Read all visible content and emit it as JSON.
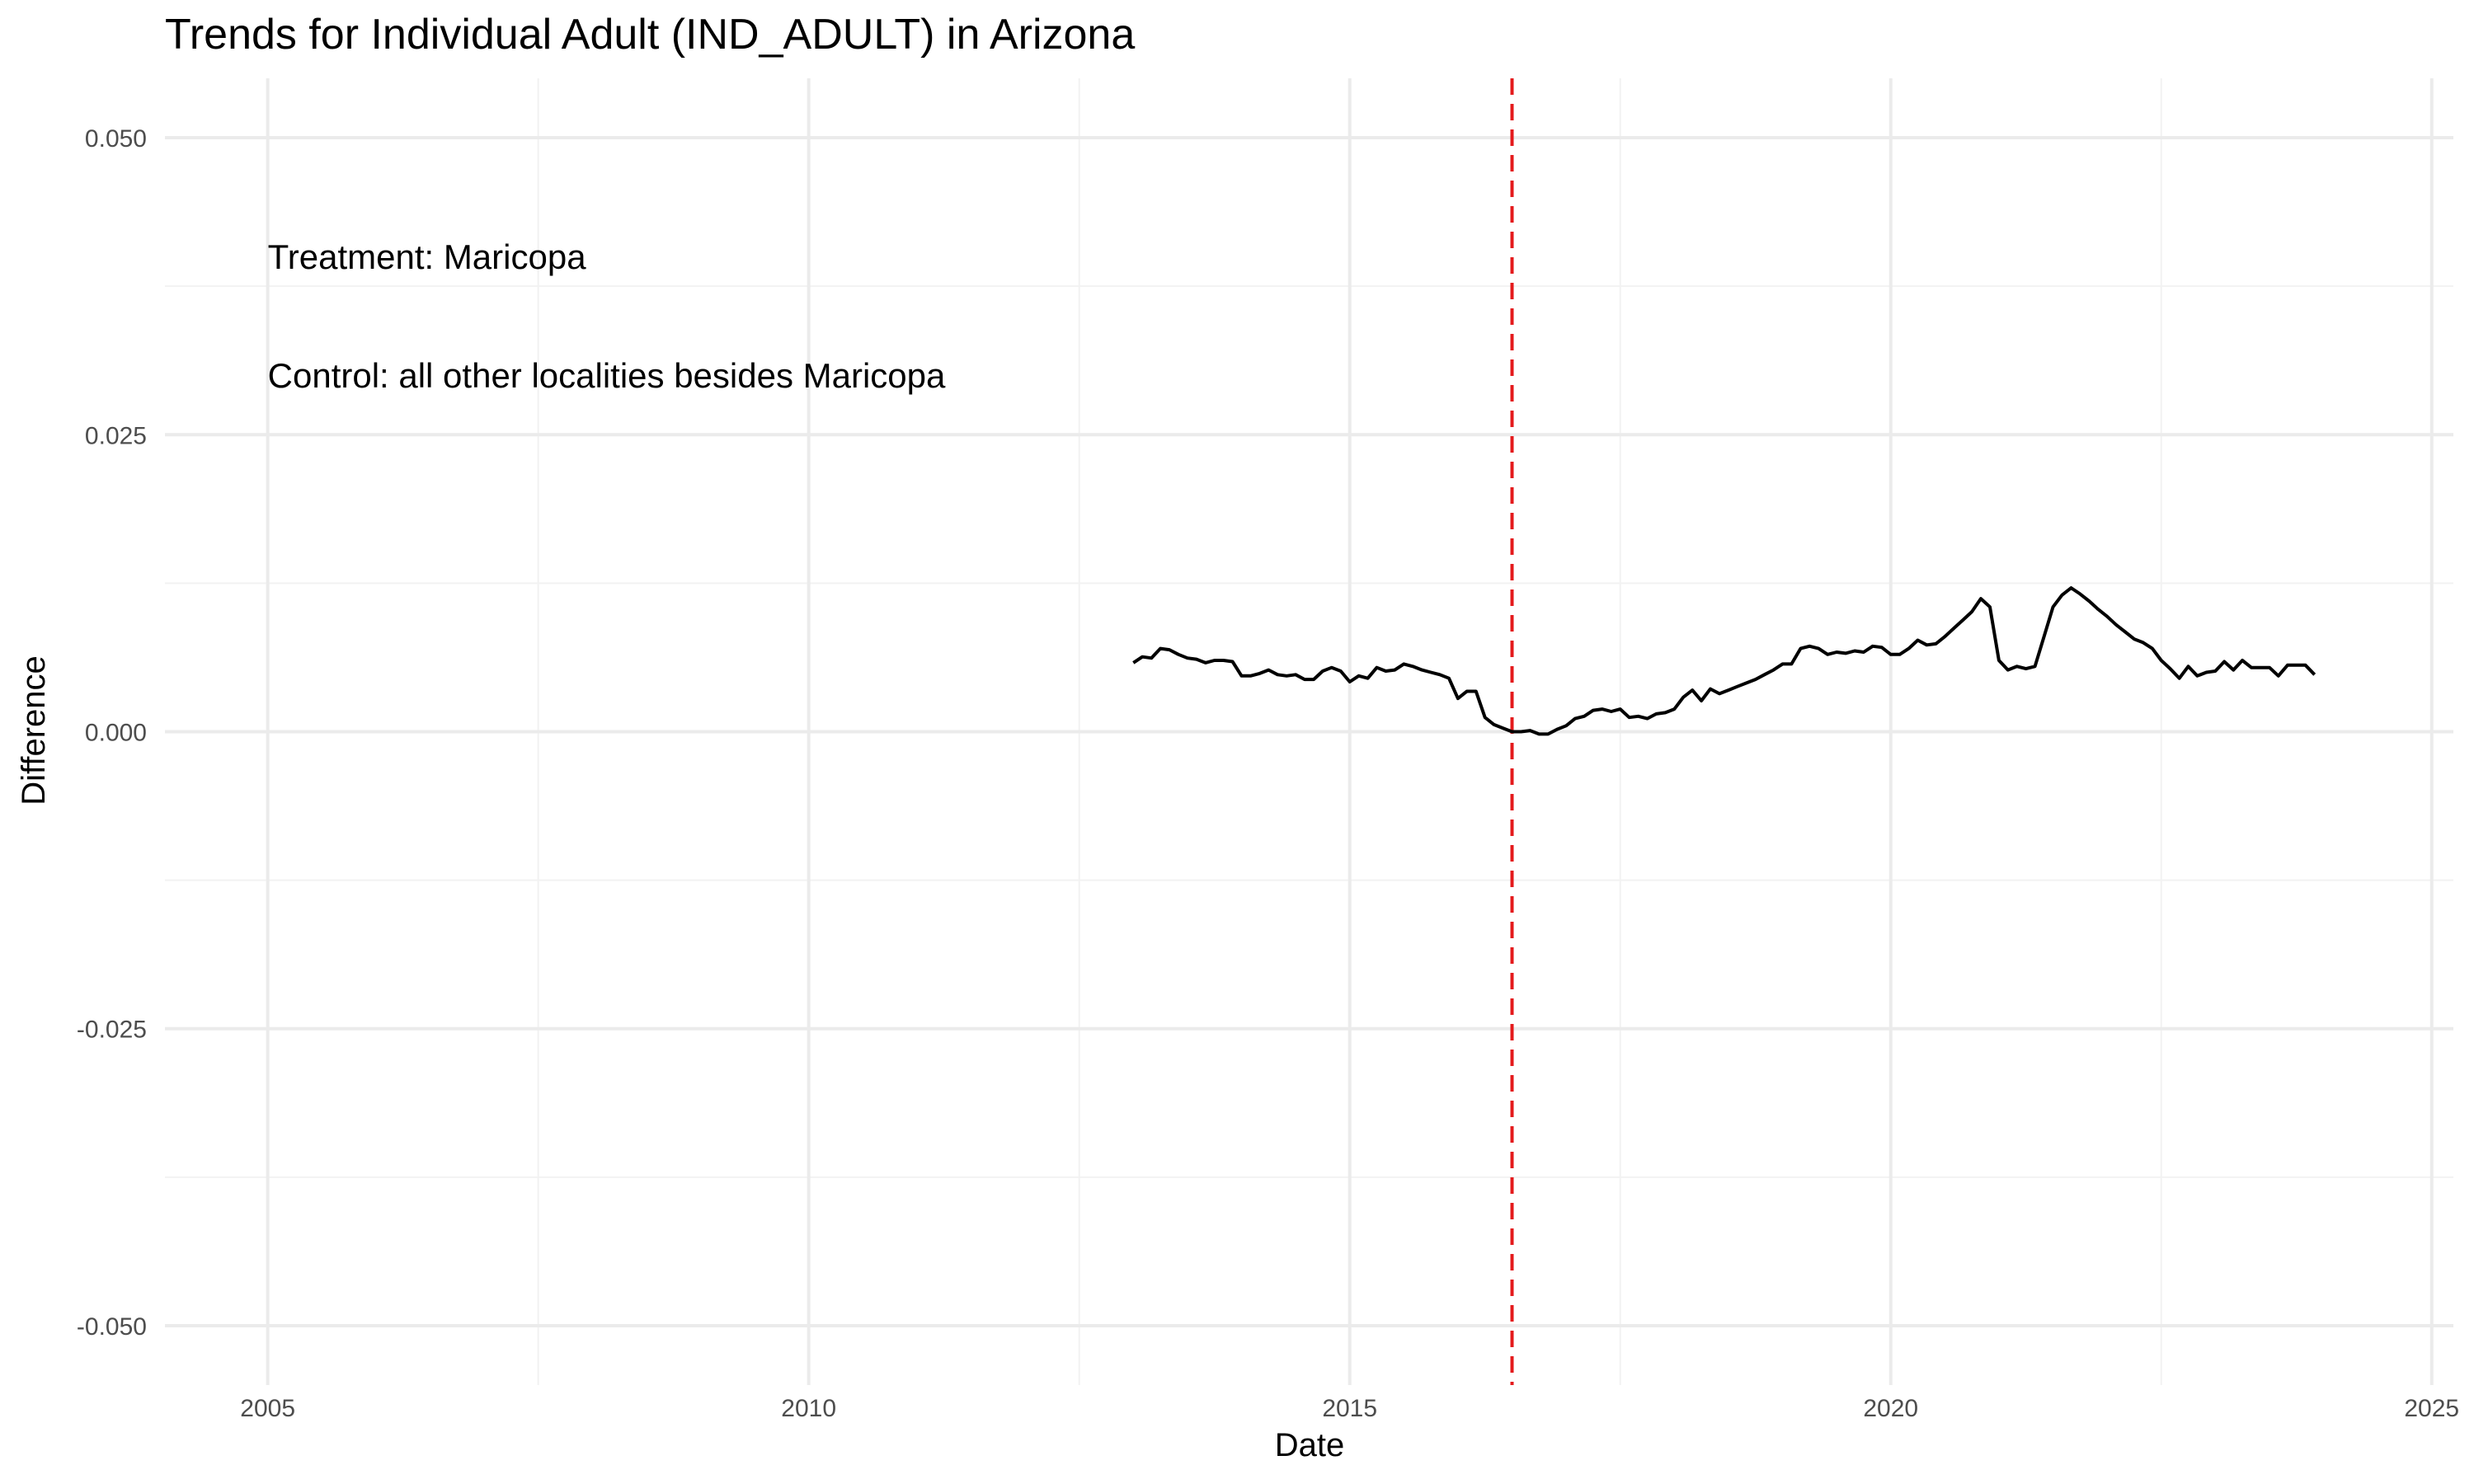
{
  "chart_data": {
    "type": "line",
    "title": "Trends for Individual Adult (IND_ADULT) in Arizona",
    "xlabel": "Date",
    "ylabel": "Difference",
    "xlim": [
      2004.05,
      2025.2
    ],
    "ylim": [
      -0.055,
      0.055
    ],
    "x_ticks": [
      2005,
      2010,
      2015,
      2020,
      2025
    ],
    "x_tick_labels": [
      "2005",
      "2010",
      "2015",
      "2020",
      "2025"
    ],
    "y_ticks": [
      -0.05,
      -0.025,
      0,
      0.025,
      0.05
    ],
    "y_tick_labels": [
      "-0.050",
      "-0.025",
      "0.000",
      "0.025",
      "0.050"
    ],
    "grid": true,
    "colors": {
      "line": "#000000",
      "vline": "#e41a1c"
    },
    "vline": {
      "x": 2016.5,
      "style": "dashed"
    },
    "annotations": [
      {
        "text": "Treatment: Maricopa",
        "x": 2005,
        "y": 0.04
      },
      {
        "text": "Control: all other localities besides Maricopa",
        "x": 2005,
        "y": 0.03
      }
    ],
    "series": [
      {
        "x": [
          2013.0,
          2013.083,
          2013.167,
          2013.25,
          2013.333,
          2013.417,
          2013.5,
          2013.583,
          2013.667,
          2013.75,
          2013.833,
          2013.917,
          2014.0,
          2014.083,
          2014.167,
          2014.25,
          2014.333,
          2014.417,
          2014.5,
          2014.583,
          2014.667,
          2014.75,
          2014.833,
          2014.917,
          2015.0,
          2015.083,
          2015.167,
          2015.25,
          2015.333,
          2015.417,
          2015.5,
          2015.583,
          2015.667,
          2015.75,
          2015.833,
          2015.917,
          2016.0,
          2016.083,
          2016.167,
          2016.25,
          2016.333,
          2016.417,
          2016.5,
          2016.583,
          2016.667,
          2016.75,
          2016.833,
          2016.917,
          2017.0,
          2017.083,
          2017.167,
          2017.25,
          2017.333,
          2017.417,
          2017.5,
          2017.583,
          2017.667,
          2017.75,
          2017.833,
          2017.917,
          2018.0,
          2018.083,
          2018.167,
          2018.25,
          2018.333,
          2018.417,
          2018.5,
          2018.583,
          2018.667,
          2018.75,
          2018.833,
          2018.917,
          2019.0,
          2019.083,
          2019.167,
          2019.25,
          2019.333,
          2019.417,
          2019.5,
          2019.583,
          2019.667,
          2019.75,
          2019.833,
          2019.917,
          2020.0,
          2020.083,
          2020.167,
          2020.25,
          2020.333,
          2020.417,
          2020.5,
          2020.583,
          2020.667,
          2020.75,
          2020.833,
          2020.917,
          2021.0,
          2021.083,
          2021.167,
          2021.25,
          2021.333,
          2021.417,
          2021.5,
          2021.583,
          2021.667,
          2021.75,
          2021.833,
          2021.917,
          2022.0,
          2022.083,
          2022.167,
          2022.25,
          2022.333,
          2022.417,
          2022.5,
          2022.583,
          2022.667,
          2022.75,
          2022.833,
          2022.917,
          2023.0,
          2023.083,
          2023.167,
          2023.25,
          2023.333,
          2023.417,
          2023.5,
          2023.583,
          2023.667,
          2023.75,
          2023.833,
          2023.917
        ],
        "y": [
          0.0058,
          0.0063,
          0.0062,
          0.007,
          0.0069,
          0.0065,
          0.0062,
          0.0061,
          0.0058,
          0.006,
          0.006,
          0.0059,
          0.0047,
          0.0047,
          0.0049,
          0.0052,
          0.0048,
          0.0047,
          0.0048,
          0.0044,
          0.0044,
          0.0051,
          0.0054,
          0.0051,
          0.0042,
          0.0047,
          0.0045,
          0.0054,
          0.0051,
          0.0052,
          0.0057,
          0.0055,
          0.0052,
          0.005,
          0.0048,
          0.0045,
          0.0028,
          0.0034,
          0.0034,
          0.0012,
          0.0006,
          0.0003,
          0.0,
          0.0,
          0.0001,
          -0.0002,
          -0.0002,
          0.0002,
          0.0005,
          0.0011,
          0.0013,
          0.0018,
          0.0019,
          0.0017,
          0.0019,
          0.0012,
          0.0013,
          0.0011,
          0.0015,
          0.0016,
          0.0019,
          0.0029,
          0.0035,
          0.0026,
          0.0036,
          0.0032,
          0.0035,
          0.0038,
          0.0041,
          0.0044,
          0.0048,
          0.0052,
          0.0057,
          0.0057,
          0.007,
          0.0072,
          0.007,
          0.0065,
          0.0067,
          0.0066,
          0.0068,
          0.0067,
          0.0072,
          0.0071,
          0.0065,
          0.0065,
          0.007,
          0.0077,
          0.0073,
          0.0074,
          0.008,
          0.0087,
          0.0094,
          0.0101,
          0.0112,
          0.0105,
          0.006,
          0.0052,
          0.0055,
          0.0053,
          0.0055,
          0.008,
          0.0105,
          0.0115,
          0.0121,
          0.0116,
          0.011,
          0.0103,
          0.0097,
          0.009,
          0.0084,
          0.0078,
          0.0075,
          0.007,
          0.006,
          0.0053,
          0.0045,
          0.0055,
          0.0047,
          0.005,
          0.0051,
          0.0059,
          0.0052,
          0.006,
          0.0054,
          0.0054,
          0.0054,
          0.0047,
          0.0056,
          0.0056,
          0.0056,
          0.0048
        ]
      }
    ]
  }
}
